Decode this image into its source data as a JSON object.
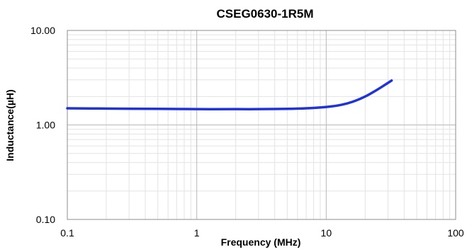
{
  "chart_data": {
    "type": "line",
    "title": "CSEG0630-1R5M",
    "xlabel": "Frequency  (MHz)",
    "ylabel": "Inductance(µH)",
    "x_scale": "log",
    "y_scale": "log",
    "xlim": [
      0.1,
      100
    ],
    "ylim": [
      0.1,
      10
    ],
    "x_ticks": [
      "0.1",
      "1",
      "10",
      "100"
    ],
    "y_ticks": [
      "0.10",
      "1.00",
      "10.00"
    ],
    "grid": true,
    "legend": "none",
    "series": [
      {
        "color": "#1f33d6",
        "x": [
          0.1,
          0.2,
          0.5,
          1,
          2,
          3,
          5,
          7,
          10,
          13,
          16,
          20,
          24,
          28,
          32
        ],
        "y": [
          1.5,
          1.49,
          1.48,
          1.47,
          1.47,
          1.47,
          1.48,
          1.5,
          1.55,
          1.63,
          1.76,
          2.0,
          2.3,
          2.62,
          2.95
        ]
      }
    ]
  }
}
